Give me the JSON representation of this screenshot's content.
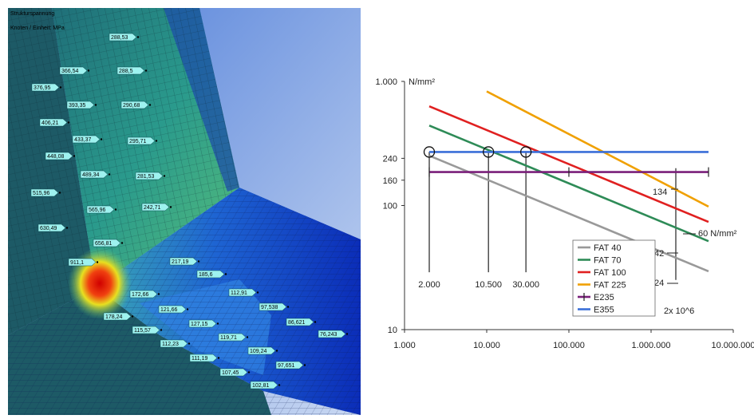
{
  "fea": {
    "header_line1": "Strukturspannung",
    "header_line2": "Knoten / Einheit: MPa",
    "colors": {
      "low": "#0b2db8",
      "mid": "#2a9a8c",
      "high": "#e01010"
    },
    "labels": [
      {
        "text": "288,53"
      },
      {
        "text": "366,54"
      },
      {
        "text": "288,5"
      },
      {
        "text": "376,95"
      },
      {
        "text": "393,35"
      },
      {
        "text": "290,68"
      },
      {
        "text": "406,21"
      },
      {
        "text": "433,37"
      },
      {
        "text": "295,71"
      },
      {
        "text": "448,08"
      },
      {
        "text": "489,34"
      },
      {
        "text": "281,53"
      },
      {
        "text": "515,96"
      },
      {
        "text": "565,96"
      },
      {
        "text": "242,71"
      },
      {
        "text": "630,49"
      },
      {
        "text": "656,81"
      },
      {
        "text": "911,1"
      },
      {
        "text": "217,19"
      },
      {
        "text": "185,6"
      },
      {
        "text": "112,91"
      },
      {
        "text": "172,66"
      },
      {
        "text": "97,538"
      },
      {
        "text": "121,66"
      },
      {
        "text": "86,621"
      },
      {
        "text": "178,24"
      },
      {
        "text": "127,15"
      },
      {
        "text": "76,243"
      },
      {
        "text": "115,57"
      },
      {
        "text": "119,71"
      },
      {
        "text": "112,23"
      },
      {
        "text": "109,24"
      },
      {
        "text": "111,19"
      },
      {
        "text": "97,651"
      },
      {
        "text": "107,45"
      },
      {
        "text": "102,81"
      }
    ]
  },
  "chart_data": {
    "type": "line",
    "x_scale": "log",
    "y_scale": "log",
    "xlim": [
      1000,
      10000000
    ],
    "ylim": [
      10,
      1000
    ],
    "y_unit": "N/mm²",
    "x_tick_labels": [
      {
        "value": 1000,
        "label": "1.000"
      },
      {
        "value": 10000,
        "label": "10.000"
      },
      {
        "value": 100000,
        "label": "100.000"
      },
      {
        "value": 1000000,
        "label": "1.000.000"
      },
      {
        "value": 10000000,
        "label": "10.000.000"
      }
    ],
    "y_tick_labels": [
      {
        "value": 1000,
        "label": "1.000"
      },
      {
        "value": 240,
        "label": "240"
      },
      {
        "value": 160,
        "label": "160"
      },
      {
        "value": 100,
        "label": "100"
      },
      {
        "value": 10,
        "label": "10"
      }
    ],
    "series": [
      {
        "name": "FAT 40",
        "color": "#999999",
        "points": [
          [
            2000,
            252
          ],
          [
            5000000,
            29.5
          ]
        ]
      },
      {
        "name": "FAT 70",
        "color": "#2e8b57",
        "points": [
          [
            2000,
            441
          ],
          [
            5000000,
            51.6
          ]
        ]
      },
      {
        "name": "FAT 100",
        "color": "#e02020",
        "points": [
          [
            2000,
            630
          ],
          [
            5000000,
            73.7
          ]
        ]
      },
      {
        "name": "FAT 225",
        "color": "#f0a000",
        "points": [
          [
            10000,
            831
          ],
          [
            5000000,
            98
          ]
        ]
      },
      {
        "name": "E235",
        "color": "#7a1f7a",
        "marker": "cross",
        "points": [
          [
            2000,
            186
          ],
          [
            100000,
            186
          ],
          [
            5000000,
            186
          ]
        ]
      },
      {
        "name": "E355",
        "color": "#3a6fd8",
        "points": [
          [
            2000,
            270
          ],
          [
            5000000,
            270
          ]
        ]
      }
    ],
    "circles": [
      [
        2000,
        270
      ],
      [
        10500,
        270
      ],
      [
        30000,
        270
      ]
    ],
    "vlines": [
      2000,
      10500,
      30000,
      2000000
    ],
    "vline_labels": [
      {
        "x": 2000,
        "label": "2.000"
      },
      {
        "x": 10500,
        "label": "10.500"
      },
      {
        "x": 30000,
        "label": "30.000"
      }
    ],
    "annotations": [
      {
        "text": "134"
      },
      {
        "text": "60 N/mm²"
      },
      {
        "text": "42"
      },
      {
        "text": "24"
      },
      {
        "text": "2x 10^6"
      }
    ],
    "legend_position": "bottom-center"
  }
}
